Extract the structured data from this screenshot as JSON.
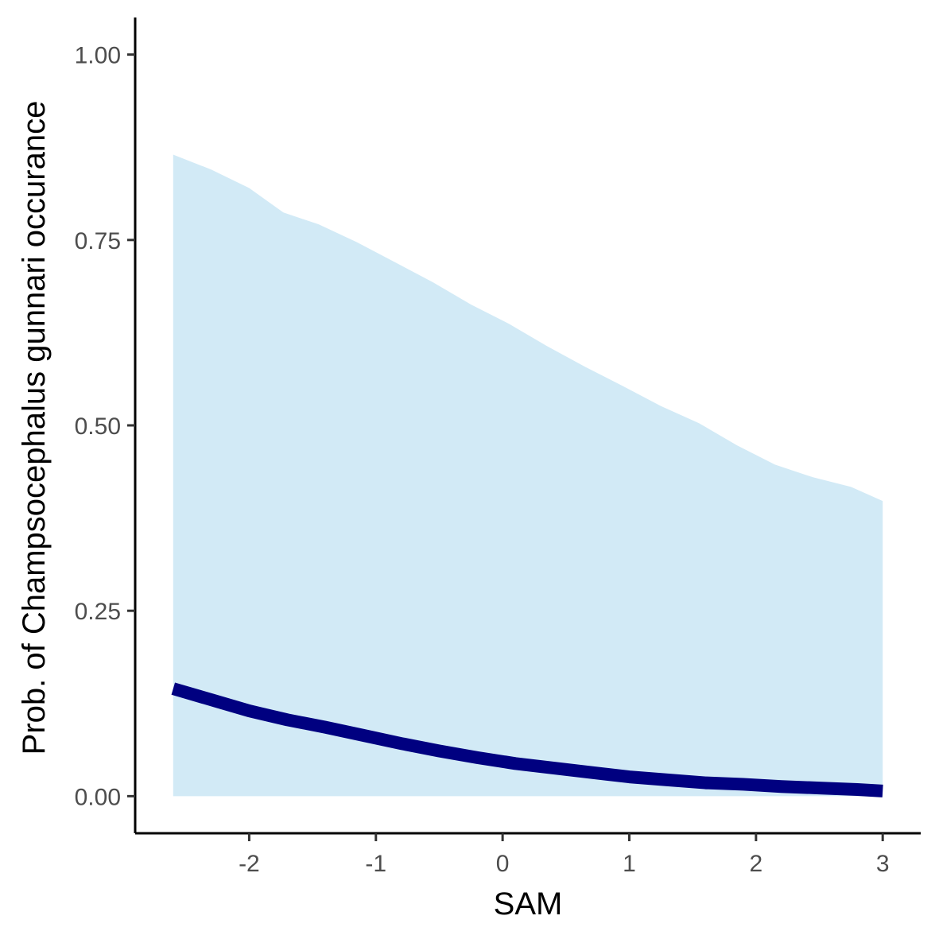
{
  "chart_data": {
    "type": "area",
    "title": "",
    "xlabel": "SAM",
    "ylabel": "Prob. of  Champsocephalus gunnari  occurance",
    "xlim": [
      -2.9,
      3.3
    ],
    "ylim": [
      -0.05,
      1.05
    ],
    "x_ticks": [
      -2,
      -1,
      0,
      1,
      2,
      3
    ],
    "x_tick_labels": [
      "-2",
      "-1",
      "0",
      "1",
      "2",
      "3"
    ],
    "y_ticks": [
      0,
      0.25,
      0.5,
      0.75,
      1
    ],
    "y_tick_labels": [
      "0.00",
      "0.25",
      "0.50",
      "0.75",
      "1.00"
    ],
    "grid": false,
    "legend": "none",
    "series": [
      {
        "kind": "ribbon",
        "color": "#d2eaf6",
        "x": [
          -2.6,
          -2.3,
          -2.0,
          -1.73,
          -1.45,
          -1.15,
          -0.85,
          -0.55,
          -0.25,
          0.05,
          0.35,
          0.65,
          0.95,
          1.25,
          1.55,
          1.85,
          2.15,
          2.45,
          2.75,
          3.0
        ],
        "upper": [
          0.865,
          0.845,
          0.82,
          0.787,
          0.771,
          0.747,
          0.72,
          0.693,
          0.663,
          0.637,
          0.607,
          0.579,
          0.553,
          0.526,
          0.503,
          0.473,
          0.447,
          0.43,
          0.417,
          0.398
        ],
        "lower": [
          0,
          0,
          0,
          0,
          0,
          0,
          0,
          0,
          0,
          0,
          0,
          0,
          0,
          0,
          0,
          0,
          0,
          0,
          0,
          0
        ]
      },
      {
        "kind": "line",
        "color": "#000080",
        "x": [
          -2.6,
          -2.3,
          -2.0,
          -1.7,
          -1.4,
          -1.1,
          -0.8,
          -0.5,
          -0.2,
          0.1,
          0.4,
          0.7,
          1.0,
          1.3,
          1.6,
          1.9,
          2.2,
          2.5,
          2.8,
          3.0
        ],
        "y": [
          0.145,
          0.13,
          0.115,
          0.103,
          0.093,
          0.082,
          0.071,
          0.061,
          0.052,
          0.044,
          0.038,
          0.032,
          0.026,
          0.022,
          0.018,
          0.016,
          0.013,
          0.011,
          0.009,
          0.007
        ]
      }
    ]
  }
}
